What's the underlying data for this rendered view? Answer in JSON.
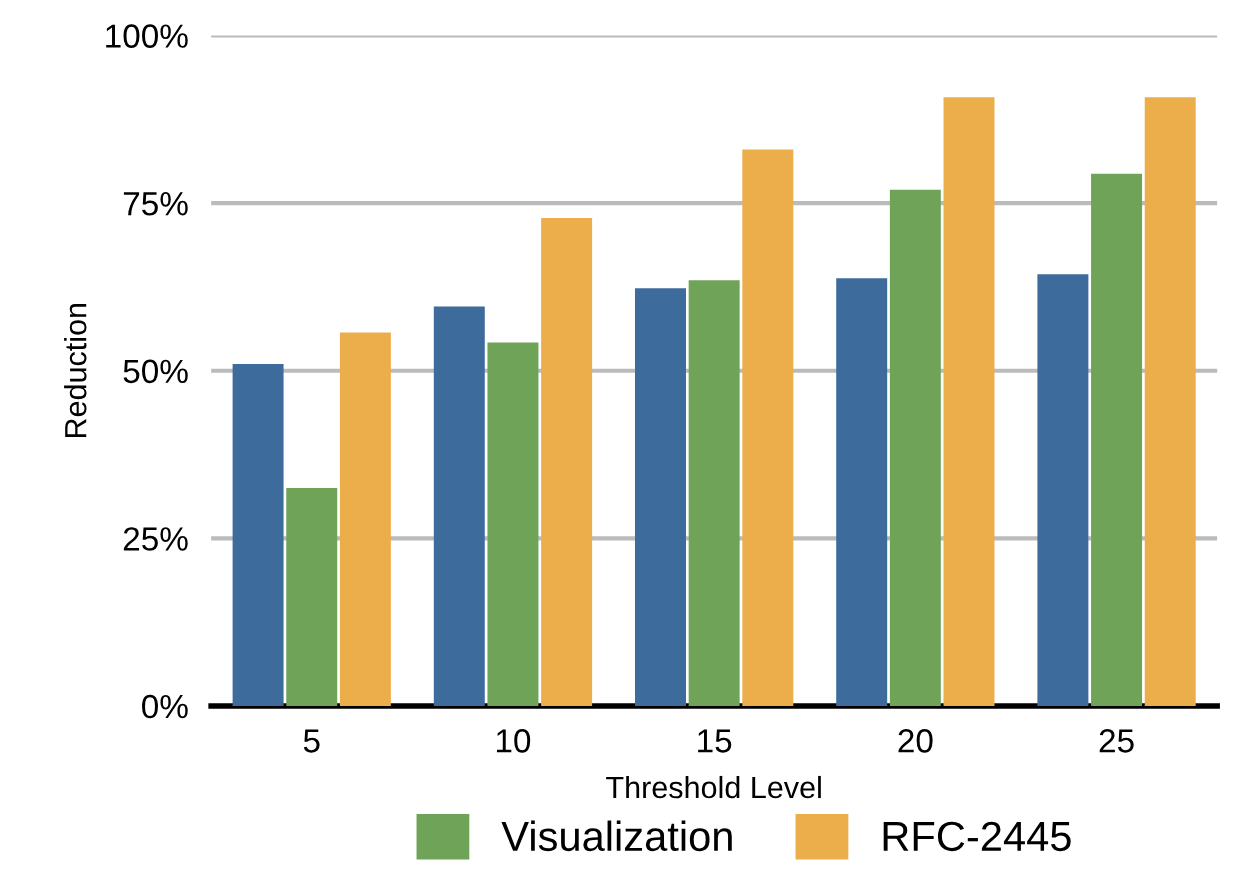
{
  "chart_data": {
    "type": "bar",
    "xlabel": "Threshold Level",
    "ylabel": "Reduction",
    "categories": [
      "5",
      "10",
      "15",
      "20",
      "25"
    ],
    "series": [
      {
        "color": "#3d6b9b",
        "values": [
          51,
          59.6,
          62.3,
          63.8,
          64.4
        ]
      },
      {
        "name": "Visualization",
        "color": "#6ea358",
        "values": [
          32.5,
          54.2,
          63.5,
          77,
          79.4
        ]
      },
      {
        "name": "RFC-2445",
        "color": "#ecae4b",
        "values": [
          55.7,
          72.8,
          83,
          90.8,
          90.8
        ]
      }
    ],
    "ylim": [
      0,
      100
    ],
    "yticks": [
      {
        "value": 0,
        "label": "0%"
      },
      {
        "value": 25,
        "label": "25%"
      },
      {
        "value": 50,
        "label": "50%"
      },
      {
        "value": 75,
        "label": "75%"
      },
      {
        "value": 100,
        "label": "100%"
      }
    ],
    "grid": "y",
    "legend": "bottom"
  }
}
